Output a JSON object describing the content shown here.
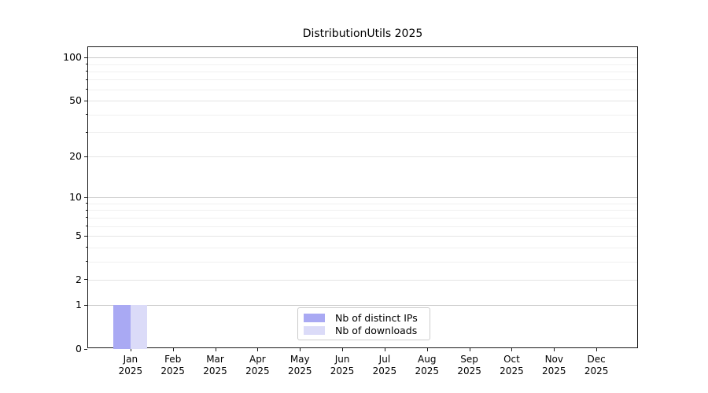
{
  "chart_data": {
    "type": "bar",
    "title": "DistributionUtils 2025",
    "categories": [
      "Jan 2025",
      "Feb 2025",
      "Mar 2025",
      "Apr 2025",
      "May 2025",
      "Jun 2025",
      "Jul 2025",
      "Aug 2025",
      "Sep 2025",
      "Oct 2025",
      "Nov 2025",
      "Dec 2025"
    ],
    "series": [
      {
        "name": "Nb of distinct IPs",
        "color": "#a9a9f3",
        "values": [
          1,
          0,
          0,
          0,
          0,
          0,
          0,
          0,
          0,
          0,
          0,
          0
        ]
      },
      {
        "name": "Nb of downloads",
        "color": "#dbdbf8",
        "values": [
          1,
          0,
          0,
          0,
          0,
          0,
          0,
          0,
          0,
          0,
          0,
          0
        ]
      }
    ],
    "y_scale": "log1p",
    "ylim": [
      0,
      118
    ],
    "y_major_ticks": [
      0,
      1,
      2,
      5,
      10,
      20,
      50,
      100
    ],
    "y_minor_gridlines": [
      3,
      4,
      6,
      7,
      8,
      9,
      30,
      40,
      60,
      70,
      80,
      90
    ],
    "bar_width_fraction": 0.4,
    "grid": true,
    "legend_position": "lower center",
    "colors": {
      "grid_major": "#c9c9c9",
      "grid_sub": "#e4e4e4",
      "grid_minor": "#f0f0f0",
      "spine": "#1a1a1a",
      "background": "#ffffff"
    }
  }
}
